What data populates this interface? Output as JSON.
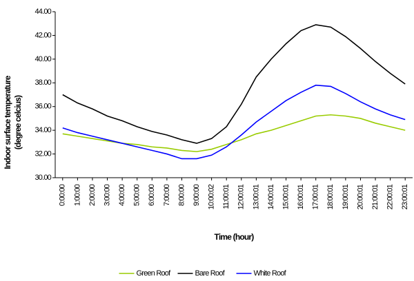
{
  "chart_data": {
    "type": "line",
    "ylabel": [
      "Indoor surface temperature",
      "(degree celcius)"
    ],
    "xlabel": "Time (hour)",
    "categories": [
      "0:00:00",
      "1:00:00",
      "2:00:00",
      "3:00:00",
      "4:00:00",
      "5:00:00",
      "6:00:00",
      "7:00:00",
      "8:00:00",
      "9:00:00",
      "10:00:02",
      "11:00:01",
      "12:00:01",
      "13:00:01",
      "14:00:01",
      "15:00:01",
      "16:00:01",
      "17:00:01",
      "18:00:01",
      "19:00:01",
      "20:00:01",
      "21:00:01",
      "22:00:01",
      "23:00:01"
    ],
    "series": [
      {
        "name": "Green Roof",
        "color": "#99cc00",
        "values": [
          33.7,
          33.5,
          33.3,
          33.1,
          32.9,
          32.8,
          32.6,
          32.5,
          32.3,
          32.2,
          32.4,
          32.8,
          33.2,
          33.7,
          34.0,
          34.4,
          34.8,
          35.2,
          35.3,
          35.2,
          35.0,
          34.6,
          34.3,
          34.0
        ]
      },
      {
        "name": "Bare Roof",
        "color": "#000000",
        "values": [
          37.0,
          36.3,
          35.8,
          35.2,
          34.8,
          34.3,
          33.9,
          33.6,
          33.2,
          32.9,
          33.3,
          34.3,
          36.2,
          38.5,
          40.0,
          41.3,
          42.4,
          42.9,
          42.7,
          41.9,
          40.9,
          39.8,
          38.8,
          37.9
        ]
      },
      {
        "name": "White Roof",
        "color": "#0000ff",
        "values": [
          34.2,
          33.8,
          33.5,
          33.2,
          32.9,
          32.6,
          32.3,
          32.0,
          31.6,
          31.6,
          31.9,
          32.6,
          33.6,
          34.7,
          35.6,
          36.5,
          37.2,
          37.8,
          37.7,
          37.1,
          36.4,
          35.8,
          35.3,
          34.9
        ]
      }
    ],
    "ylim": [
      30,
      44
    ],
    "yticks": [
      {
        "value": 30,
        "label": "30.00"
      },
      {
        "value": 32,
        "label": "32.00"
      },
      {
        "value": 34,
        "label": "34.00"
      },
      {
        "value": 36,
        "label": "36.00"
      },
      {
        "value": 38,
        "label": "38.00"
      },
      {
        "value": 40,
        "label": "40.00"
      },
      {
        "value": 42,
        "label": "42.00"
      },
      {
        "value": 44,
        "label": "44.00"
      }
    ],
    "grid": false,
    "legend": "bottom"
  }
}
